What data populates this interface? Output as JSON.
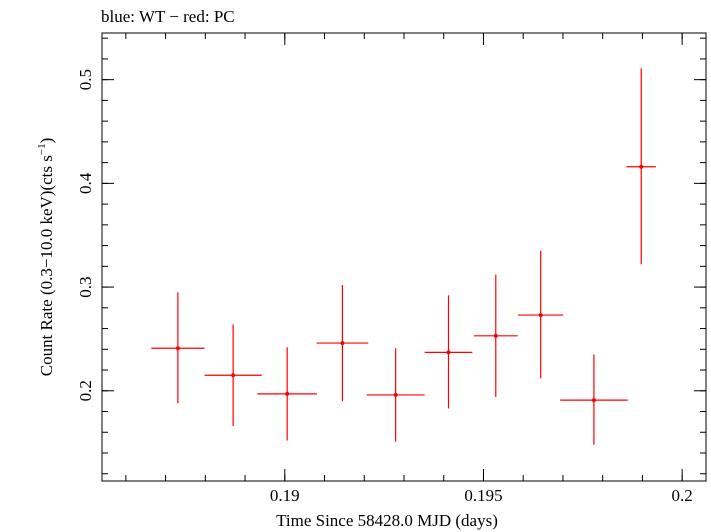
{
  "chart_data": {
    "type": "scatter",
    "title": "blue: WT − red: PC",
    "xlabel": "Time Since 58428.0 MJD (days)",
    "ylabel_parts": {
      "main": "Count Rate (0.3−10.0 keV)(cts s",
      "sup": "−1",
      "end": ")"
    },
    "xlim": [
      0.1854,
      0.2006
    ],
    "ylim": [
      0.113,
      0.545
    ],
    "x_ticks": [
      {
        "value": 0.19,
        "label": "0.19"
      },
      {
        "value": 0.195,
        "label": "0.195"
      },
      {
        "value": 0.2,
        "label": "0.2"
      }
    ],
    "y_ticks": [
      {
        "value": 0.2,
        "label": "0.2"
      },
      {
        "value": 0.3,
        "label": "0.3"
      },
      {
        "value": 0.4,
        "label": "0.4"
      },
      {
        "value": 0.5,
        "label": "0.5"
      }
    ],
    "grid": false,
    "series": [
      {
        "color": "#ff0000",
        "points": [
          {
            "x": 0.18731,
            "xerr": 0.00067,
            "y": 0.241,
            "yerr_hi": 0.054,
            "yerr_lo": 0.053
          },
          {
            "x": 0.1887,
            "xerr": 0.00072,
            "y": 0.215,
            "yerr_hi": 0.049,
            "yerr_lo": 0.049
          },
          {
            "x": 0.19006,
            "xerr": 0.00075,
            "y": 0.197,
            "yerr_hi": 0.045,
            "yerr_lo": 0.045
          },
          {
            "x": 0.19145,
            "xerr": 0.00065,
            "y": 0.246,
            "yerr_hi": 0.056,
            "yerr_lo": 0.056
          },
          {
            "x": 0.19279,
            "xerr": 0.00073,
            "y": 0.196,
            "yerr_hi": 0.045,
            "yerr_lo": 0.045
          },
          {
            "x": 0.19412,
            "xerr": 0.0006,
            "y": 0.237,
            "yerr_hi": 0.055,
            "yerr_lo": 0.054
          },
          {
            "x": 0.19531,
            "xerr": 0.00055,
            "y": 0.253,
            "yerr_hi": 0.059,
            "yerr_lo": 0.059
          },
          {
            "x": 0.19644,
            "xerr": 0.00057,
            "y": 0.273,
            "yerr_hi": 0.062,
            "yerr_lo": 0.061
          },
          {
            "x": 0.19778,
            "xerr": 0.00085,
            "y": 0.191,
            "yerr_hi": 0.044,
            "yerr_lo": 0.043
          },
          {
            "x": 0.19897,
            "xerr": 0.00037,
            "y": 0.416,
            "yerr_hi": 0.095,
            "yerr_lo": 0.094
          }
        ]
      }
    ]
  }
}
